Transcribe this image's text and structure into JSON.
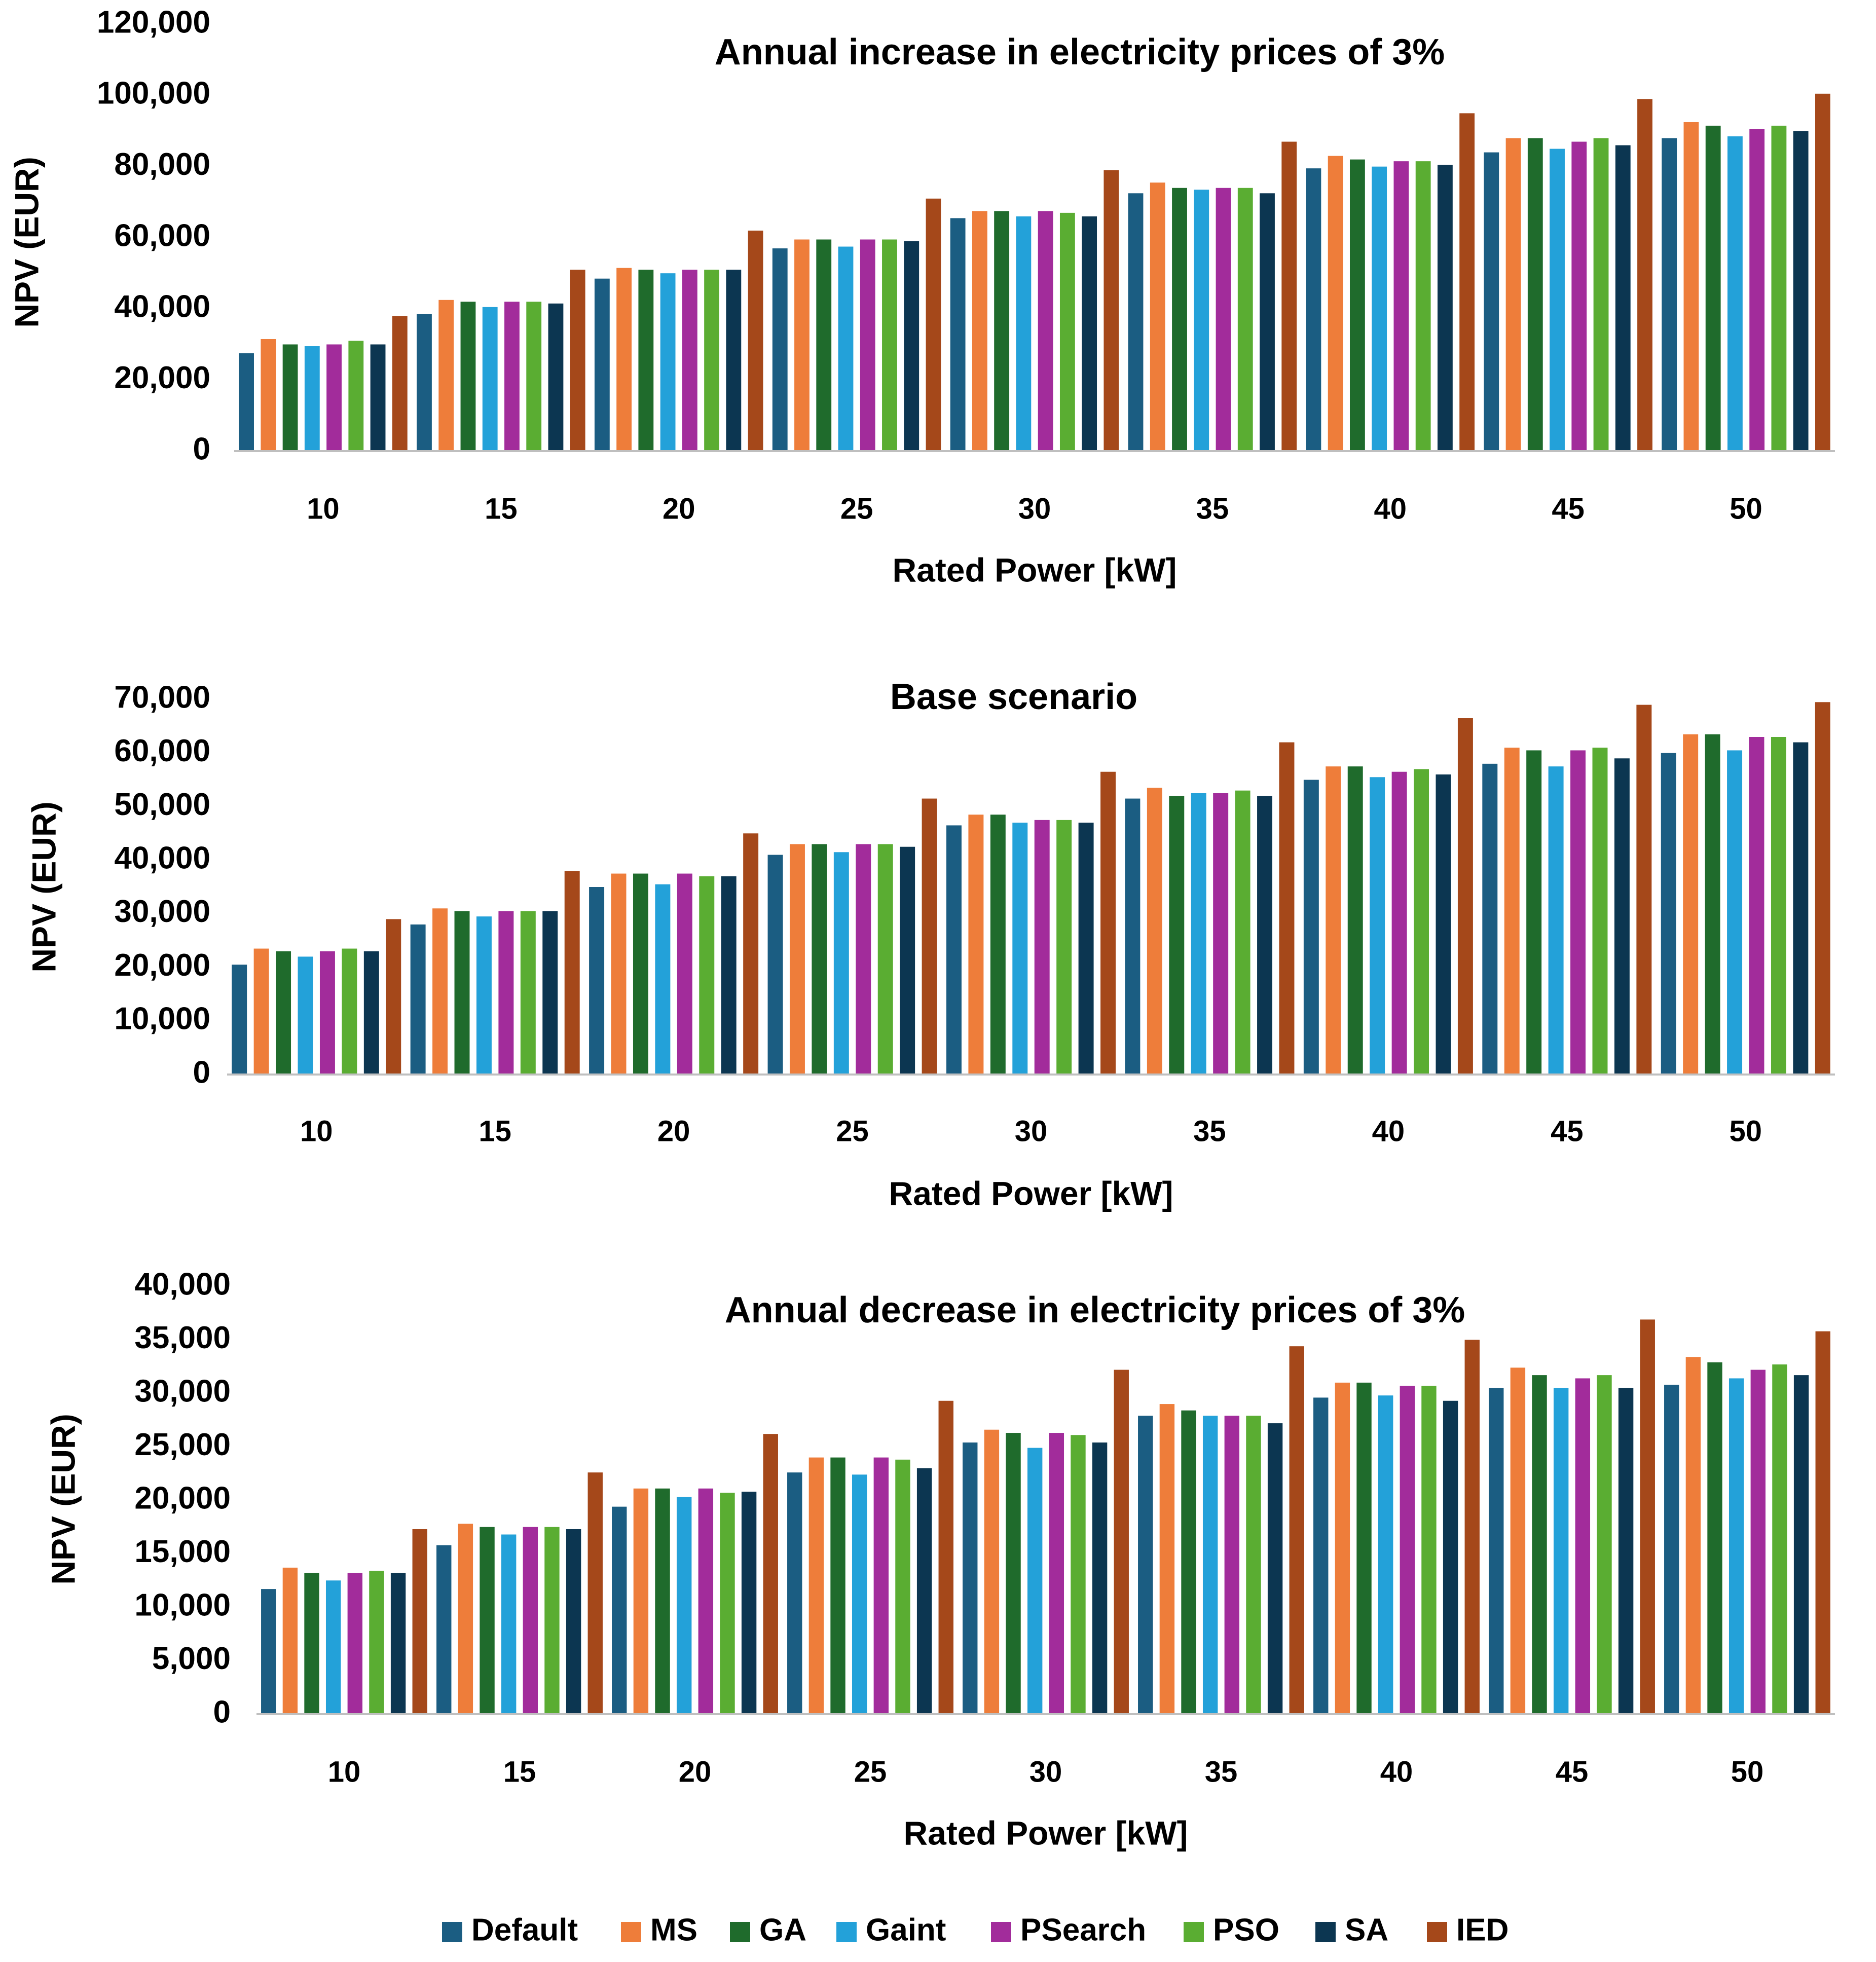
{
  "colors": {
    "Default": "#1b5d82",
    "MS": "#ee7d3a",
    "GA": "#1f6b2c",
    "Gaint": "#23a1d9",
    "PSearch": "#a22c9b",
    "PSO": "#5aad32",
    "SA": "#0c3651",
    "IED": "#a5481a"
  },
  "legend": [
    "Default",
    "MS",
    "GA",
    "Gaint",
    "PSearch",
    "PSO",
    "SA",
    "IED"
  ],
  "chart_data": [
    {
      "type": "bar",
      "title": "Annual increase in electricity prices of 3%",
      "xlabel": "Rated Power [kW]",
      "ylabel": "NPV (EUR)",
      "ylim": [
        0,
        120000
      ],
      "yticks": [
        0,
        20000,
        40000,
        60000,
        80000,
        100000,
        120000
      ],
      "ytick_labels": [
        "0",
        "20,000",
        "40,000",
        "60,000",
        "80,000",
        "100,000",
        "120,000"
      ],
      "categories": [
        "10",
        "15",
        "20",
        "25",
        "30",
        "35",
        "40",
        "45",
        "50"
      ],
      "series": [
        {
          "name": "Default",
          "values": [
            27500,
            38500,
            48500,
            57000,
            65500,
            72500,
            79500,
            84000,
            88000
          ]
        },
        {
          "name": "MS",
          "values": [
            31500,
            42500,
            51500,
            59500,
            67500,
            75500,
            83000,
            88000,
            92500
          ]
        },
        {
          "name": "GA",
          "values": [
            30000,
            42000,
            51000,
            59500,
            67500,
            74000,
            82000,
            88000,
            91500
          ]
        },
        {
          "name": "Gaint",
          "values": [
            29500,
            40500,
            50000,
            57500,
            66000,
            73500,
            80000,
            85000,
            88500
          ]
        },
        {
          "name": "PSearch",
          "values": [
            30000,
            42000,
            51000,
            59500,
            67500,
            74000,
            81500,
            87000,
            90500
          ]
        },
        {
          "name": "PSO",
          "values": [
            31000,
            42000,
            51000,
            59500,
            67000,
            74000,
            81500,
            88000,
            91500
          ]
        },
        {
          "name": "SA",
          "values": [
            30000,
            41500,
            51000,
            59000,
            66000,
            72500,
            80500,
            86000,
            90000
          ]
        },
        {
          "name": "IED",
          "values": [
            38000,
            51000,
            62000,
            71000,
            79000,
            87000,
            95000,
            99000,
            100500
          ]
        }
      ]
    },
    {
      "type": "bar",
      "title": "Base scenario",
      "xlabel": "Rated Power [kW]",
      "ylabel": "NPV (EUR)",
      "ylim": [
        0,
        70000
      ],
      "yticks": [
        0,
        10000,
        20000,
        30000,
        40000,
        50000,
        60000,
        70000
      ],
      "ytick_labels": [
        "0",
        "10,000",
        "20,000",
        "30,000",
        "40,000",
        "50,000",
        "60,000",
        "70,000"
      ],
      "categories": [
        "10",
        "15",
        "20",
        "25",
        "30",
        "35",
        "40",
        "45",
        "50"
      ],
      "series": [
        {
          "name": "Default",
          "values": [
            20500,
            28000,
            35000,
            41000,
            46500,
            51500,
            55000,
            58000,
            60000
          ]
        },
        {
          "name": "MS",
          "values": [
            23500,
            31000,
            37500,
            43000,
            48500,
            53500,
            57500,
            61000,
            63500
          ]
        },
        {
          "name": "GA",
          "values": [
            23000,
            30500,
            37500,
            43000,
            48500,
            52000,
            57500,
            60500,
            63500
          ]
        },
        {
          "name": "Gaint",
          "values": [
            22000,
            29500,
            35500,
            41500,
            47000,
            52500,
            55500,
            57500,
            60500
          ]
        },
        {
          "name": "PSearch",
          "values": [
            23000,
            30500,
            37500,
            43000,
            47500,
            52500,
            56500,
            60500,
            63000
          ]
        },
        {
          "name": "PSO",
          "values": [
            23500,
            30500,
            37000,
            43000,
            47500,
            53000,
            57000,
            61000,
            63000
          ]
        },
        {
          "name": "SA",
          "values": [
            23000,
            30500,
            37000,
            42500,
            47000,
            52000,
            56000,
            59000,
            62000
          ]
        },
        {
          "name": "IED",
          "values": [
            29000,
            38000,
            45000,
            51500,
            56500,
            62000,
            66500,
            69000,
            69500
          ]
        }
      ]
    },
    {
      "type": "bar",
      "title": "Annual decrease in electricity prices of 3%",
      "xlabel": "Rated Power [kW]",
      "ylabel": "NPV (EUR)",
      "ylim": [
        0,
        40000
      ],
      "yticks": [
        0,
        5000,
        10000,
        15000,
        20000,
        25000,
        30000,
        35000,
        40000
      ],
      "ytick_labels": [
        "0",
        "5,000",
        "10,000",
        "15,000",
        "20,000",
        "25,000",
        "30,000",
        "35,000",
        "40,000"
      ],
      "categories": [
        "10",
        "15",
        "20",
        "25",
        "30",
        "35",
        "40",
        "45",
        "50"
      ],
      "series": [
        {
          "name": "Default",
          "values": [
            11700,
            15800,
            19400,
            22600,
            25400,
            27900,
            29600,
            30500,
            30800
          ]
        },
        {
          "name": "MS",
          "values": [
            13700,
            17800,
            21100,
            24000,
            26600,
            29000,
            31000,
            32400,
            33400
          ]
        },
        {
          "name": "GA",
          "values": [
            13200,
            17500,
            21100,
            24000,
            26300,
            28400,
            31000,
            31700,
            32900
          ]
        },
        {
          "name": "Gaint",
          "values": [
            12500,
            16800,
            20300,
            22400,
            24900,
            27900,
            29800,
            30500,
            31400
          ]
        },
        {
          "name": "PSearch",
          "values": [
            13200,
            17500,
            21100,
            24000,
            26300,
            27900,
            30700,
            31400,
            32200
          ]
        },
        {
          "name": "PSO",
          "values": [
            13400,
            17500,
            20700,
            23800,
            26100,
            27900,
            30700,
            31700,
            32700
          ]
        },
        {
          "name": "SA",
          "values": [
            13200,
            17300,
            20800,
            23000,
            25400,
            27200,
            29300,
            30500,
            31700
          ]
        },
        {
          "name": "IED",
          "values": [
            17300,
            22600,
            26200,
            29300,
            32200,
            34400,
            35000,
            36900,
            35800
          ]
        }
      ]
    }
  ]
}
